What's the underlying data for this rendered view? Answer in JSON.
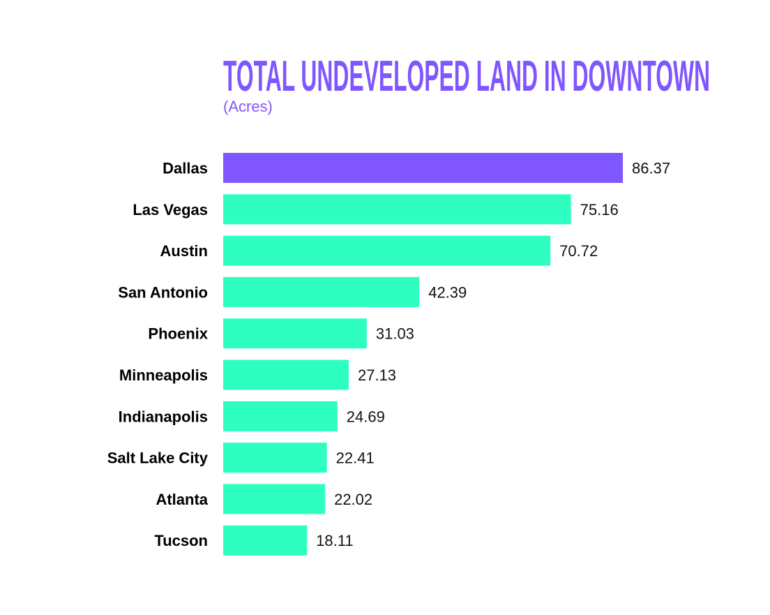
{
  "chart_data": {
    "type": "bar",
    "orientation": "horizontal",
    "title": "TOTAL UNDEVELOPED LAND IN DOWNTOWN",
    "subtitle": "(Acres)",
    "xlabel": "",
    "ylabel": "",
    "xlim": [
      0,
      86.37
    ],
    "grid": false,
    "categories": [
      "Dallas",
      "Las Vegas",
      "Austin",
      "San Antonio",
      "Phoenix",
      "Minneapolis",
      "Indianapolis",
      "Salt Lake City",
      "Atlanta",
      "Tucson"
    ],
    "values": [
      86.37,
      75.16,
      70.72,
      42.39,
      31.03,
      27.13,
      24.69,
      22.41,
      22.02,
      18.11
    ],
    "value_labels": [
      "86.37",
      "75.16",
      "70.72",
      "42.39",
      "31.03",
      "27.13",
      "24.69",
      "22.41",
      "22.02",
      "18.11"
    ],
    "highlight_category": "Dallas",
    "colors": {
      "highlight": "#7f56ff",
      "default": "#2effc0",
      "title": "#7f56ff"
    }
  }
}
